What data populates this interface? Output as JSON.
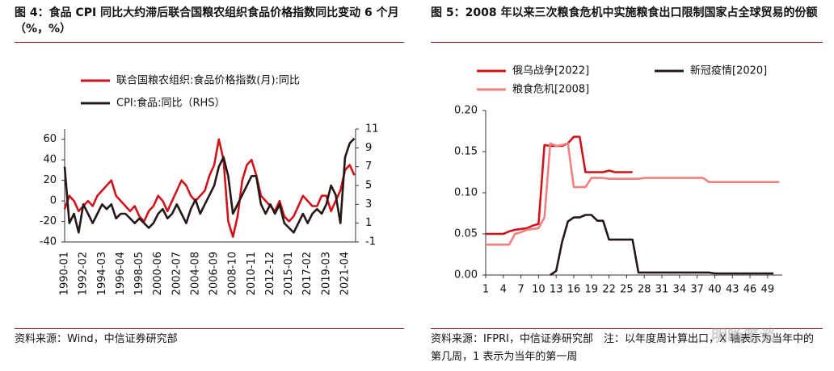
{
  "chart_data": [
    {
      "type": "line",
      "title": "图 4：食品 CPI 同比大约滞后联合国粮农组织食品价格指数同比变动 6 个月（%，%）",
      "source": "资料来源：Wind，中信证券研究部",
      "categories": [
        "1990-01",
        null,
        null,
        null,
        "1992-02",
        null,
        null,
        null,
        "1994-03",
        null,
        null,
        null,
        "1996-04",
        null,
        null,
        null,
        "1998-05",
        null,
        null,
        null,
        "2000-06",
        null,
        null,
        null,
        "2002-07",
        null,
        null,
        null,
        "2004-08",
        null,
        null,
        null,
        "2006-09",
        null,
        null,
        null,
        "2008-10",
        null,
        null,
        null,
        "2010-11",
        null,
        null,
        null,
        "2012-12",
        null,
        null,
        null,
        "2015-01",
        null,
        null,
        null,
        "2017-02",
        null,
        null,
        null,
        "2019-03",
        null,
        null,
        null,
        "2021-04",
        null,
        null
      ],
      "series": [
        {
          "name": "联合国粮农组织:食品价格指数(月):同比",
          "color": "#d0121b",
          "values": [
            -8,
            5,
            0,
            -10,
            -5,
            0,
            -5,
            5,
            10,
            15,
            20,
            5,
            0,
            -5,
            -10,
            -5,
            -15,
            -20,
            -10,
            -5,
            5,
            0,
            -10,
            0,
            10,
            20,
            15,
            5,
            0,
            5,
            10,
            25,
            35,
            60,
            40,
            -20,
            -35,
            -15,
            20,
            35,
            40,
            25,
            5,
            0,
            -5,
            -10,
            0,
            -15,
            -20,
            -15,
            -5,
            5,
            0,
            -5,
            -5,
            5,
            5,
            -10,
            0,
            10,
            30,
            35,
            25
          ]
        },
        {
          "name": "CPI:食品:同比（RHS）",
          "color": "#231815",
          "axis": "y2",
          "values": [
            7,
            1,
            2,
            0,
            3,
            2,
            1,
            2,
            3,
            2.5,
            3,
            1.5,
            2,
            2,
            1.5,
            1,
            1.5,
            1,
            0.5,
            1,
            2,
            2.5,
            1.5,
            2,
            3,
            2,
            1,
            2.5,
            3.5,
            2,
            3,
            4,
            5,
            7,
            8,
            6,
            2,
            3,
            4,
            5,
            6,
            6,
            3,
            2,
            3,
            2,
            3,
            1,
            0.5,
            0,
            1,
            2,
            1,
            2,
            2.5,
            2,
            3,
            5,
            4,
            1,
            8,
            9.5,
            10
          ]
        }
      ],
      "ylim": [
        -40,
        70
      ],
      "yticks": [
        -40,
        -20,
        0,
        20,
        40,
        60
      ],
      "y2lim": [
        -1,
        11
      ],
      "y2ticks": [
        -1,
        1,
        3,
        5,
        7,
        9,
        11
      ]
    },
    {
      "type": "line",
      "title": "图 5：2008 年以来三次粮食危机中实施粮食出口限制国家占全球贸易的份额",
      "source": "资料来源：IFPRI，中信证券研究部　注：以年度周计算出口，X 轴表示为当年中的第几周，1 表示为当年的第一周",
      "watermark": "明晰笔谈",
      "x": [
        1,
        2,
        3,
        4,
        5,
        6,
        7,
        8,
        9,
        10,
        11,
        12,
        13,
        14,
        15,
        16,
        17,
        18,
        19,
        20,
        21,
        22,
        23,
        24,
        25,
        26,
        27,
        28,
        29,
        30,
        31,
        32,
        33,
        34,
        35,
        36,
        37,
        38,
        39,
        40,
        41,
        42,
        43,
        44,
        45,
        46,
        47,
        48,
        49,
        50,
        51
      ],
      "series": [
        {
          "name": "俄乌战争[2022]",
          "color": "#d0121b",
          "values": [
            0.05,
            0.05,
            0.05,
            0.05,
            0.053,
            0.055,
            0.056,
            0.057,
            0.06,
            0.062,
            0.158,
            0.157,
            0.157,
            0.157,
            0.16,
            0.168,
            0.168,
            0.125,
            0.125,
            0.125,
            0.125,
            0.127,
            0.125,
            0.125,
            0.125,
            0.125,
            null,
            null,
            null,
            null,
            null,
            null,
            null,
            null,
            null,
            null,
            null,
            null,
            null,
            null,
            null,
            null,
            null,
            null,
            null,
            null,
            null,
            null,
            null,
            null,
            null
          ]
        },
        {
          "name": "新冠疫情[2020]",
          "color": "#231815",
          "values": [
            null,
            null,
            null,
            null,
            null,
            null,
            null,
            null,
            null,
            null,
            null,
            0,
            0.005,
            0.04,
            0.065,
            0.07,
            0.07,
            0.073,
            0.073,
            0.066,
            0.066,
            0.043,
            0.043,
            0.043,
            0.043,
            0.043,
            0.003,
            0.003,
            0.003,
            0.003,
            0.003,
            0.003,
            0.003,
            0.003,
            0.003,
            0.003,
            0.003,
            0.003,
            0.003,
            0.002,
            0.002,
            0.002,
            0.002,
            0.002,
            0.002,
            0.002,
            0.002,
            0.002,
            0.002,
            0.002,
            null
          ]
        },
        {
          "name": "粮食危机[2008]",
          "color": "#f08080",
          "values": [
            0.037,
            0.037,
            0.037,
            0.037,
            0.037,
            0.05,
            0.052,
            0.055,
            0.056,
            0.057,
            0.07,
            0.16,
            0.157,
            0.158,
            0.16,
            0.107,
            0.107,
            0.107,
            0.118,
            0.118,
            0.118,
            0.117,
            0.117,
            0.117,
            0.117,
            0.117,
            0.117,
            0.118,
            0.118,
            0.118,
            0.118,
            0.118,
            0.118,
            0.118,
            0.118,
            0.118,
            0.118,
            0.118,
            0.113,
            0.113,
            0.113,
            0.113,
            0.113,
            0.113,
            0.113,
            0.113,
            0.113,
            0.113,
            0.113,
            0.113,
            0.113
          ]
        }
      ],
      "xlim": [
        1,
        51.5
      ],
      "xticks": [
        1,
        4,
        7,
        10,
        13,
        16,
        19,
        22,
        25,
        28,
        31,
        34,
        37,
        40,
        43,
        46,
        49
      ],
      "ylim": [
        0,
        0.2
      ],
      "yticks": [
        {
          "value": 0,
          "label": "0.00"
        },
        {
          "value": 0.05,
          "label": "0.05"
        },
        {
          "value": 0.1,
          "label": "0.10"
        },
        {
          "value": 0.15,
          "label": "0.15"
        },
        {
          "value": 0.2,
          "label": "0.20"
        }
      ]
    }
  ]
}
